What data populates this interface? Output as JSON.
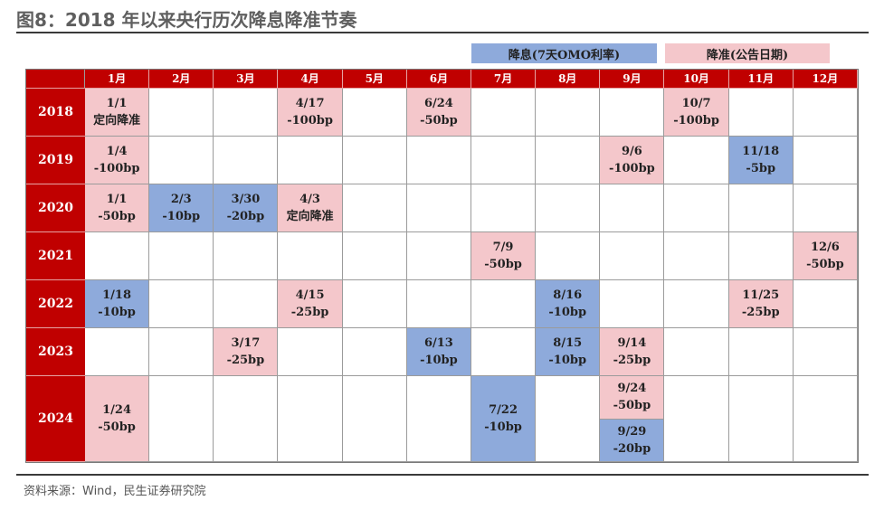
{
  "title": "图8：2018 年以来央行历次降息降准节奏",
  "legend": {
    "rate_cut": "降息(7天OMO利率)",
    "rrr_cut": "降准(公告日期)"
  },
  "colors": {
    "header_red": "#c00000",
    "rate_cut_blue": "#8eaadb",
    "rrr_cut_pink": "#f4c7cb"
  },
  "months": [
    "1月",
    "2月",
    "3月",
    "4月",
    "5月",
    "6月",
    "7月",
    "8月",
    "9月",
    "10月",
    "11月",
    "12月"
  ],
  "years": [
    "2018",
    "2019",
    "2020",
    "2021",
    "2022",
    "2023",
    "2024"
  ],
  "events": [
    {
      "year": "2018",
      "month": 1,
      "type": "rrr",
      "text": "1/1\n定向降准"
    },
    {
      "year": "2018",
      "month": 4,
      "type": "rrr",
      "text": "4/17\n-100bp"
    },
    {
      "year": "2018",
      "month": 6,
      "type": "rrr",
      "text": "6/24\n-50bp"
    },
    {
      "year": "2018",
      "month": 10,
      "type": "rrr",
      "text": "10/7\n-100bp"
    },
    {
      "year": "2019",
      "month": 1,
      "type": "rrr",
      "text": "1/4\n-100bp"
    },
    {
      "year": "2019",
      "month": 9,
      "type": "rrr",
      "text": "9/6\n-100bp"
    },
    {
      "year": "2019",
      "month": 11,
      "type": "rate",
      "text": "11/18\n-5bp"
    },
    {
      "year": "2020",
      "month": 1,
      "type": "rrr",
      "text": "1/1\n-50bp"
    },
    {
      "year": "2020",
      "month": 2,
      "type": "rate",
      "text": "2/3\n-10bp"
    },
    {
      "year": "2020",
      "month": 3,
      "type": "rate",
      "text": "3/30\n-20bp"
    },
    {
      "year": "2020",
      "month": 4,
      "type": "rrr",
      "text": "4/3\n定向降准"
    },
    {
      "year": "2021",
      "month": 7,
      "type": "rrr",
      "text": "7/9\n-50bp"
    },
    {
      "year": "2021",
      "month": 12,
      "type": "rrr",
      "text": "12/6\n-50bp"
    },
    {
      "year": "2022",
      "month": 1,
      "type": "rate",
      "text": "1/18\n-10bp"
    },
    {
      "year": "2022",
      "month": 4,
      "type": "rrr",
      "text": "4/15\n-25bp"
    },
    {
      "year": "2022",
      "month": 8,
      "type": "rate",
      "text": "8/16\n-10bp"
    },
    {
      "year": "2022",
      "month": 11,
      "type": "rrr",
      "text": "11/25\n-25bp"
    },
    {
      "year": "2023",
      "month": 3,
      "type": "rrr",
      "text": "3/17\n-25bp"
    },
    {
      "year": "2023",
      "month": 6,
      "type": "rate",
      "text": "6/13\n-10bp"
    },
    {
      "year": "2023",
      "month": 8,
      "type": "rate",
      "text": "8/15\n-10bp"
    },
    {
      "year": "2023",
      "month": 9,
      "type": "rrr",
      "text": "9/14\n-25bp"
    },
    {
      "year": "2024",
      "month": 1,
      "type": "rrr",
      "text": "1/24\n-50bp"
    },
    {
      "year": "2024",
      "month": 7,
      "type": "rate",
      "text": "7/22\n-10bp"
    },
    {
      "year": "2024",
      "month": 9,
      "type": "split",
      "parts": [
        {
          "type": "rrr",
          "text": "9/24\n-50bp"
        },
        {
          "type": "rate",
          "text": "9/29\n-20bp"
        }
      ]
    }
  ],
  "source": "资料来源：Wind，民生证券研究院"
}
